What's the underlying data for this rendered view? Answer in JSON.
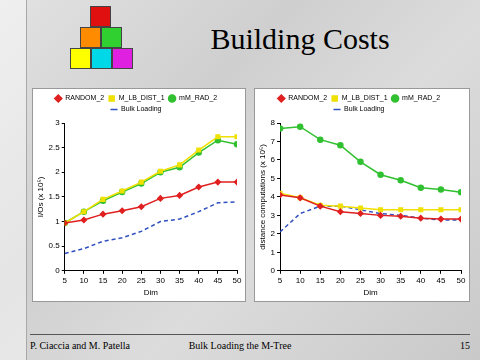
{
  "title": "Building Costs",
  "footer": {
    "left": "P. Ciaccia and M. Patella",
    "center": "Bulk Loading the M-Tree",
    "page": 15
  },
  "chart_data": [
    {
      "type": "line",
      "xlabel": "Dim",
      "ylabel": "I/Os (x 10⁵)",
      "x": [
        5,
        10,
        15,
        20,
        25,
        30,
        35,
        40,
        45,
        50
      ],
      "xlim": [
        5,
        50
      ],
      "xticks": [
        5,
        10,
        15,
        20,
        25,
        30,
        35,
        40,
        45,
        50
      ],
      "ylim": [
        0,
        3
      ],
      "yticks": [
        0,
        0.5,
        1,
        1.5,
        2,
        2.5,
        3
      ],
      "grid": false,
      "legend": "top",
      "series": [
        {
          "name": "RANDOM_2",
          "color": "#e02020",
          "marker": "diamond",
          "line_style": "solid",
          "values": [
            0.97,
            1.03,
            1.15,
            1.22,
            1.3,
            1.47,
            1.53,
            1.7,
            1.8,
            1.8
          ]
        },
        {
          "name": "M_LB_DIST_1",
          "color": "#f0e000",
          "marker": "square",
          "line_style": "solid",
          "values": [
            0.97,
            1.2,
            1.45,
            1.62,
            1.8,
            2.02,
            2.15,
            2.45,
            2.72,
            2.72
          ]
        },
        {
          "name": "mM_RAD_2",
          "color": "#30c030",
          "marker": "circle",
          "line_style": "solid",
          "values": [
            0.97,
            1.2,
            1.42,
            1.6,
            1.77,
            2.0,
            2.1,
            2.4,
            2.65,
            2.57
          ]
        },
        {
          "name": "Bulk Loading",
          "color": "#3050c0",
          "marker": "none",
          "line_style": "dashed",
          "values": [
            0.35,
            0.45,
            0.6,
            0.67,
            0.8,
            1.0,
            1.05,
            1.2,
            1.38,
            1.4
          ]
        }
      ]
    },
    {
      "type": "line",
      "xlabel": "Dim",
      "ylabel": "distance computations (x 10⁵)",
      "x": [
        5,
        10,
        15,
        20,
        25,
        30,
        35,
        40,
        45,
        50
      ],
      "xlim": [
        5,
        50
      ],
      "xticks": [
        5,
        10,
        15,
        20,
        25,
        30,
        35,
        40,
        45,
        50
      ],
      "ylim": [
        0,
        8
      ],
      "yticks": [
        0,
        1,
        2,
        3,
        4,
        5,
        6,
        7,
        8
      ],
      "grid": false,
      "legend": "top",
      "series": [
        {
          "name": "RANDOM_2",
          "color": "#e02020",
          "marker": "diamond",
          "line_style": "solid",
          "values": [
            4.1,
            3.95,
            3.5,
            3.2,
            3.1,
            3.0,
            2.95,
            2.85,
            2.8,
            2.8
          ]
        },
        {
          "name": "M_LB_DIST_1",
          "color": "#f0e000",
          "marker": "square",
          "line_style": "solid",
          "values": [
            4.2,
            3.95,
            3.55,
            3.5,
            3.4,
            3.3,
            3.3,
            3.3,
            3.3,
            3.3
          ]
        },
        {
          "name": "mM_RAD_2",
          "color": "#30c030",
          "marker": "circle",
          "line_style": "solid",
          "values": [
            7.7,
            7.8,
            7.1,
            6.8,
            5.9,
            5.2,
            4.9,
            4.5,
            4.4,
            4.25
          ]
        },
        {
          "name": "Bulk Loading",
          "color": "#3050c0",
          "marker": "none",
          "line_style": "dashed",
          "values": [
            2.1,
            3.1,
            3.5,
            3.5,
            3.3,
            3.1,
            3.0,
            2.85,
            2.75,
            2.75
          ]
        }
      ]
    }
  ]
}
